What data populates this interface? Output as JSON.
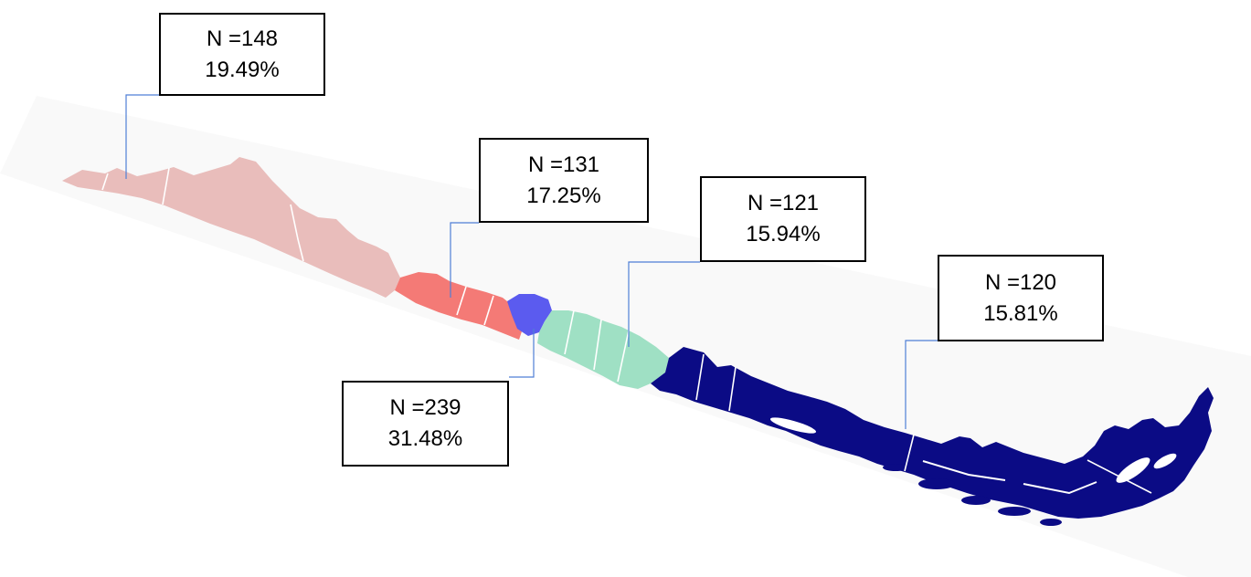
{
  "regions": [
    {
      "id": "north",
      "label_n": "N =148",
      "label_pct": "19.49%",
      "n": 148,
      "percent": 19.49,
      "color": "#e9bdbb"
    },
    {
      "id": "north-central",
      "label_n": "N =131",
      "label_pct": "17.25%",
      "n": 131,
      "percent": 17.25,
      "color": "#f47a76"
    },
    {
      "id": "south-central",
      "label_n": "N =121",
      "label_pct": "15.94%",
      "n": 121,
      "percent": 15.94,
      "color": "#9fe0c4"
    },
    {
      "id": "south",
      "label_n": "N =120",
      "label_pct": "15.81%",
      "n": 120,
      "percent": 15.81,
      "color": "#0b0b85"
    },
    {
      "id": "metropolitan",
      "label_n": "N =239",
      "label_pct": "31.48%",
      "n": 239,
      "percent": 31.48,
      "color": "#5b5bef"
    }
  ],
  "colors": {
    "leader_line": "#4f7fd6",
    "box_border": "#000000",
    "map_backdrop": "#f6f6f6",
    "internal_borders": "#ffffff"
  }
}
